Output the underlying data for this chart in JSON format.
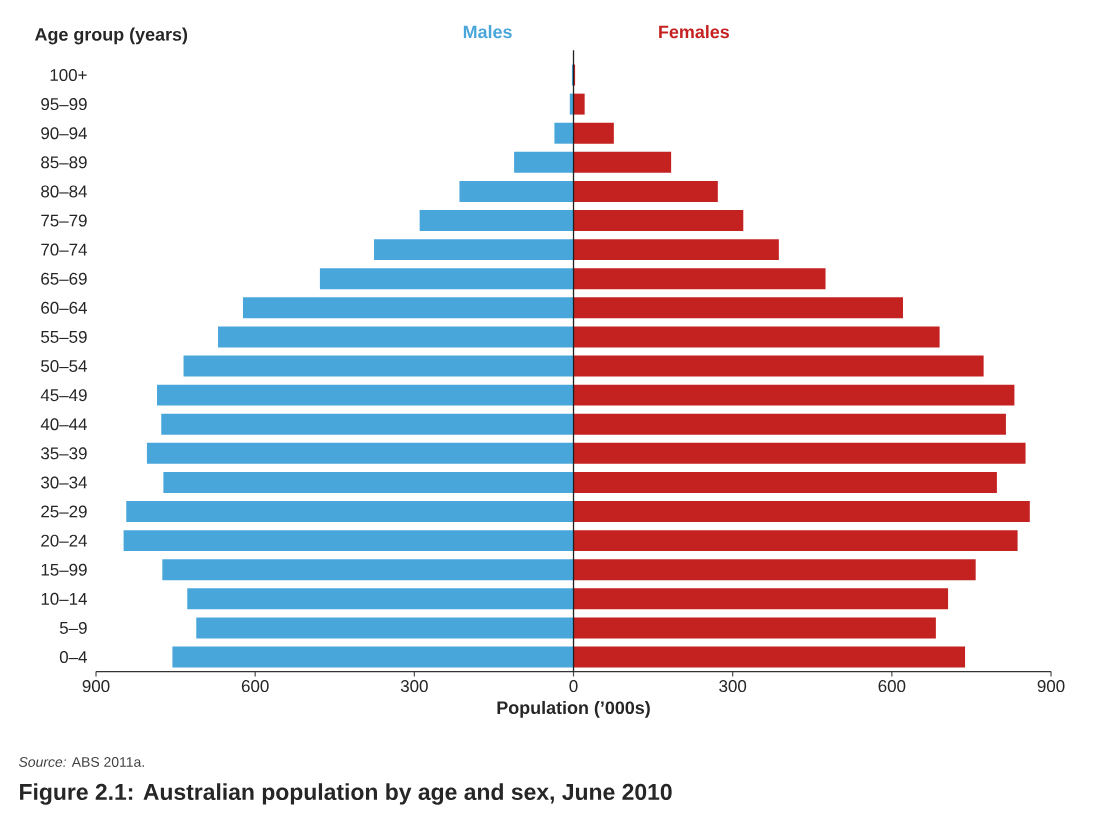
{
  "chart_data": {
    "type": "bar",
    "orientation": "horizontal",
    "stacked": true,
    "title": "Figure 2.1: Australian population by age and sex, June 2010",
    "xlabel": "Population (’000s)",
    "ylabel": "Age group (years)",
    "annotations": [
      "*Source:* ABS 2011a."
    ],
    "categories": [
      "100+",
      "95–99",
      "90–94",
      "85–89",
      "80–84",
      "75–79",
      "70–74",
      "65–69",
      "60–64",
      "55–59",
      "50–54",
      "45–49",
      "40–44",
      "35–39",
      "30–34",
      "25–29",
      "20–24",
      "15–99",
      "10–14",
      "5–9",
      "0–4"
    ],
    "series": [
      {
        "name": "Males",
        "color": "#49a6db",
        "values": [
          -3,
          -7,
          -36,
          -112,
          -215,
          -290,
          -376,
          -478,
          -623,
          -670,
          -735,
          -785,
          -777,
          -804,
          -773,
          -843,
          -848,
          -775,
          -728,
          -711,
          -756
        ]
      },
      {
        "name": "Females",
        "color": "#c42220",
        "values": [
          3,
          21,
          76,
          184,
          272,
          320,
          387,
          475,
          621,
          690,
          773,
          831,
          815,
          852,
          798,
          860,
          837,
          758,
          706,
          683,
          738
        ]
      }
    ],
    "xlim": [
      -900,
      900
    ],
    "xticks": [
      {
        "value": -900,
        "label": "900"
      },
      {
        "value": -600,
        "label": "600"
      },
      {
        "value": -300,
        "label": "300"
      },
      0,
      300,
      600,
      900
    ],
    "ref_lines": [
      {
        "axis": "x",
        "value": 0,
        "color": "#231f20"
      }
    ]
  }
}
